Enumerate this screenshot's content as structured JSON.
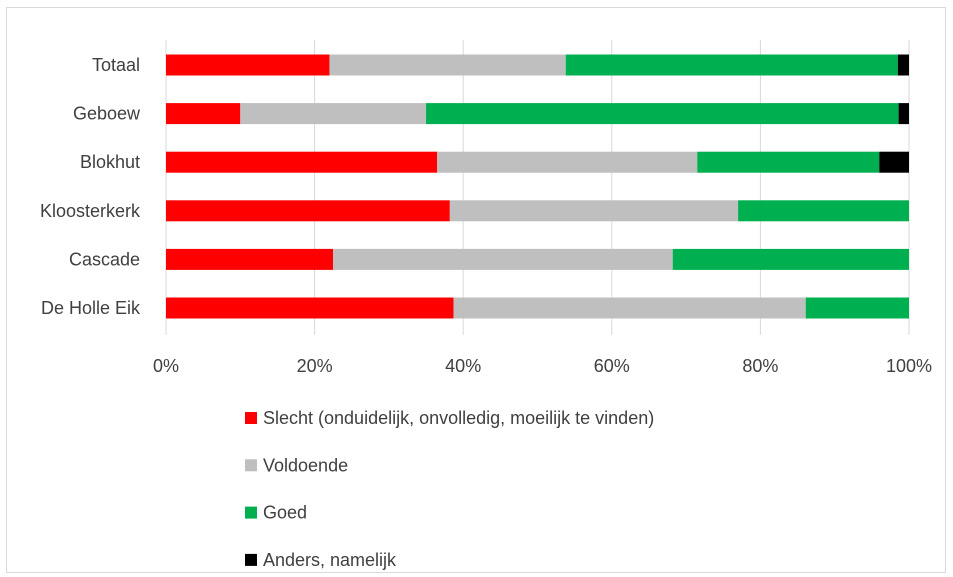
{
  "chart_data": {
    "type": "bar",
    "orientation": "horizontal",
    "stacked": "percent",
    "categories": [
      "Totaal",
      "Geboew",
      "Blokhut",
      "Kloosterkerk",
      "Cascade",
      "De Holle Eik"
    ],
    "series": [
      {
        "name": "Slecht (onduidelijk, onvolledig, moeilijk te vinden)",
        "color": "#ff0000",
        "values": [
          22,
          10,
          36.5,
          38.2,
          22.5,
          38.7
        ]
      },
      {
        "name": "Voldoende",
        "color": "#bfbfbf",
        "values": [
          31.8,
          25,
          35,
          38.8,
          45.7,
          47.4
        ]
      },
      {
        "name": "Goed",
        "color": "#00b050",
        "values": [
          44.7,
          63.6,
          24.5,
          23,
          31.8,
          13.9
        ]
      },
      {
        "name": "Anders, namelijk",
        "color": "#000000",
        "values": [
          1.5,
          1.4,
          4,
          0,
          0,
          0
        ]
      }
    ],
    "x_ticks": [
      "0%",
      "20%",
      "40%",
      "60%",
      "80%",
      "100%"
    ],
    "xlim": [
      0,
      100
    ],
    "grid": true,
    "legend_position": "bottom"
  }
}
